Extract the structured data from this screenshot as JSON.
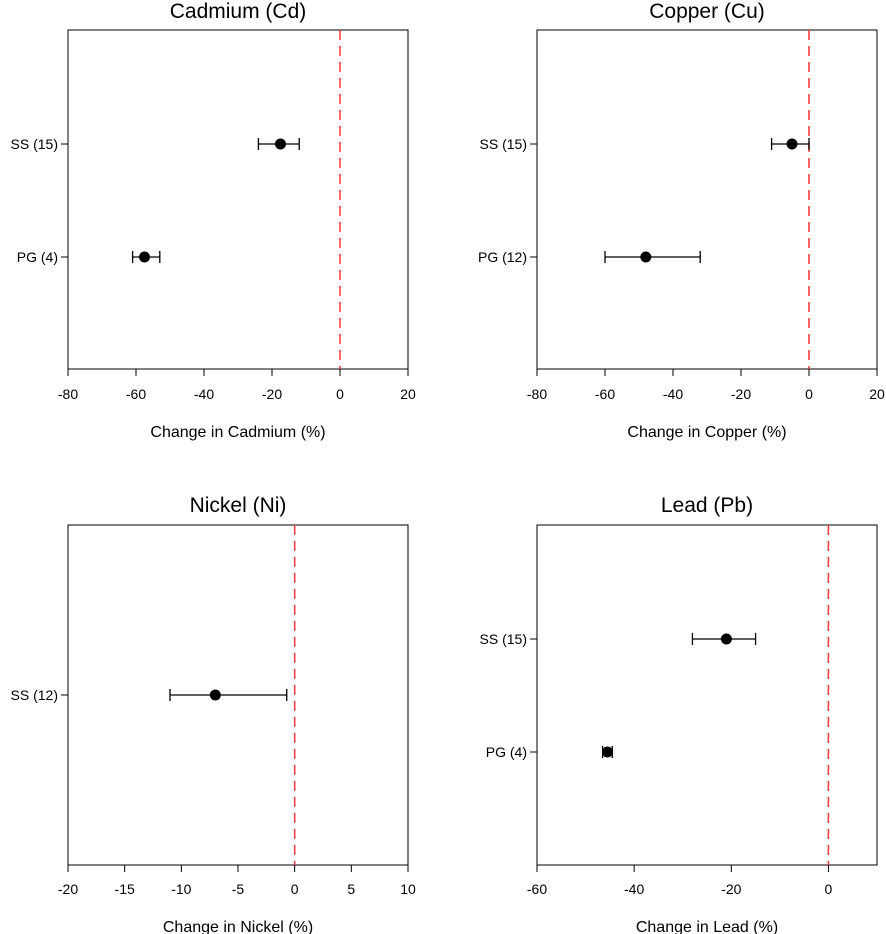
{
  "colors": {
    "reference_line": "#ff3333",
    "points": "#000000",
    "frame": "#000000"
  },
  "chart_data": [
    {
      "type": "scatter",
      "title": "Cadmium (Cd)",
      "xlabel": "Change in Cadmium (%)",
      "ylabel": "",
      "xlim": [
        -80,
        20
      ],
      "xticks": [
        -80,
        -60,
        -40,
        -20,
        0,
        20
      ],
      "reference_x": 0,
      "categories": [
        "SS (15)",
        "PG (4)"
      ],
      "values": [
        -17.5,
        -57.5
      ],
      "ci_low": [
        -24,
        -61
      ],
      "ci_high": [
        -12,
        -53
      ]
    },
    {
      "type": "scatter",
      "title": "Copper (Cu)",
      "xlabel": "Change in Copper (%)",
      "ylabel": "",
      "xlim": [
        -80,
        20
      ],
      "xticks": [
        -80,
        -60,
        -40,
        -20,
        0,
        20
      ],
      "reference_x": 0,
      "categories": [
        "SS (15)",
        "PG (12)"
      ],
      "values": [
        -5,
        -48
      ],
      "ci_low": [
        -11,
        -60
      ],
      "ci_high": [
        0,
        -32
      ]
    },
    {
      "type": "scatter",
      "title": "Nickel (Ni)",
      "xlabel": "Change in Nickel (%)",
      "ylabel": "",
      "xlim": [
        -20,
        10
      ],
      "xticks": [
        -20,
        -15,
        -10,
        -5,
        0,
        5,
        10
      ],
      "reference_x": 0,
      "categories": [
        "SS (12)"
      ],
      "values": [
        -7
      ],
      "ci_low": [
        -11
      ],
      "ci_high": [
        -0.7
      ]
    },
    {
      "type": "scatter",
      "title": "Lead (Pb)",
      "xlabel": "Change in Lead (%)",
      "ylabel": "",
      "xlim": [
        -60,
        10
      ],
      "xticks": [
        -60,
        -40,
        -20,
        0
      ],
      "reference_x": 0,
      "categories": [
        "SS (15)",
        "PG (4)"
      ],
      "values": [
        -21,
        -45.5
      ],
      "ci_low": [
        -28,
        -46.5
      ],
      "ci_high": [
        -15,
        -44.5
      ]
    }
  ]
}
